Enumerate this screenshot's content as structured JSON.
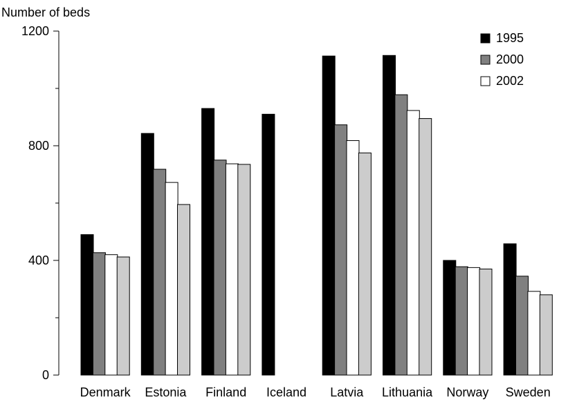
{
  "chart_data": {
    "type": "bar",
    "title": "",
    "ylabel": "Number of beds",
    "xlabel": "",
    "ylim": [
      0,
      1200
    ],
    "yticks": [
      0,
      400,
      800,
      1200
    ],
    "grid": false,
    "legend_position": "top-right",
    "categories": [
      "Denmark",
      "Estonia",
      "Finland",
      "Iceland",
      "Latvia",
      "Lithuania",
      "Norway",
      "Sweden"
    ],
    "series": [
      {
        "name": "1995",
        "color": "#000000",
        "values": [
          490,
          843,
          930,
          910,
          1113,
          1115,
          400,
          458
        ]
      },
      {
        "name": "2000",
        "color": "#808080",
        "values": [
          427,
          718,
          750,
          null,
          873,
          978,
          378,
          345
        ]
      },
      {
        "name": "2002",
        "color": "#ffffff",
        "values": [
          420,
          672,
          737,
          null,
          818,
          923,
          375,
          292
        ]
      },
      {
        "name": "",
        "color": "#cccccc",
        "values": [
          412,
          595,
          735,
          null,
          775,
          895,
          370,
          280
        ]
      }
    ]
  }
}
